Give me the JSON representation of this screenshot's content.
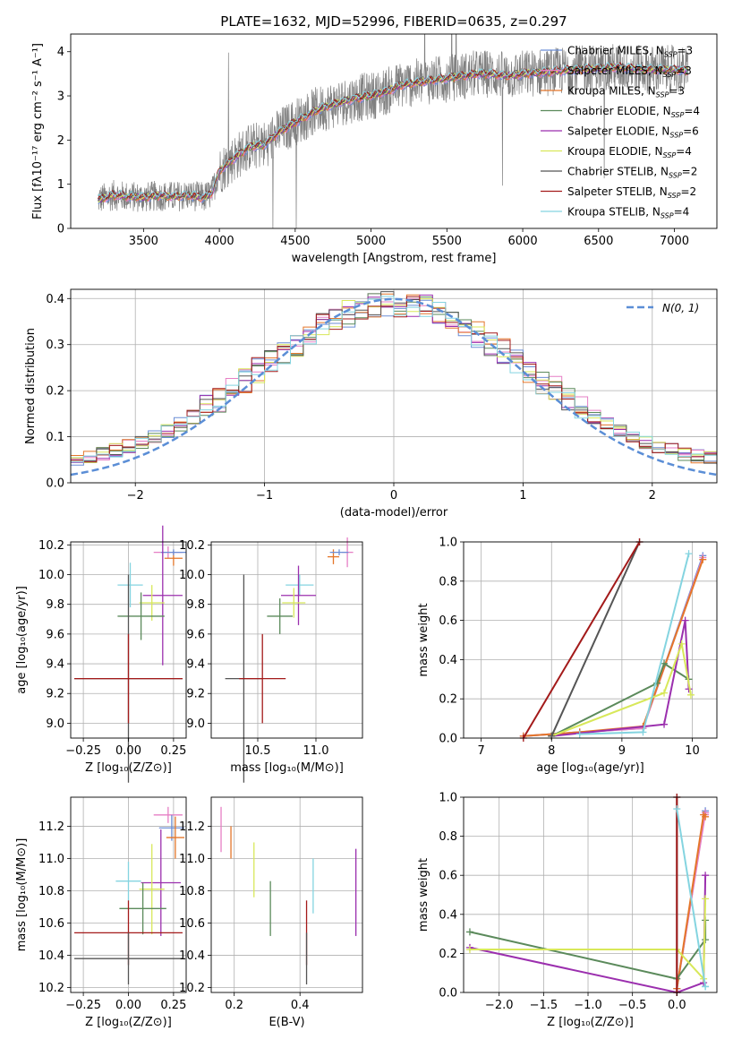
{
  "figure": {
    "title": "PLATE=1632, MJD=52996, FIBERID=0635, z=0.297"
  },
  "colors": {
    "Chabrier MILES": "#6b8ed6",
    "Salpeter MILES": "#e67fc5",
    "Kroupa MILES": "#e4762a",
    "Chabrier ELODIE": "#5b8a5b",
    "Salpeter ELODIE": "#9b2fae",
    "Kroupa ELODIE": "#d8e85a",
    "Chabrier STELIB": "#555555",
    "Salpeter STELIB": "#a31a1a",
    "Kroupa STELIB": "#84d4e0",
    "data": "#808080",
    "gaussian": "#5b8ed6"
  },
  "legend": {
    "spectrum": [
      {
        "label": "Chabrier MILES, N",
        "sub": "SSP",
        "tail": "=3",
        "key": "Chabrier MILES"
      },
      {
        "label": "Salpeter MILES, N",
        "sub": "SSP",
        "tail": "=3",
        "key": "Salpeter MILES"
      },
      {
        "label": "Kroupa MILES, N",
        "sub": "SSP",
        "tail": "=3",
        "key": "Kroupa MILES"
      },
      {
        "label": "Chabrier ELODIE, N",
        "sub": "SSP",
        "tail": "=4",
        "key": "Chabrier ELODIE"
      },
      {
        "label": "Salpeter ELODIE, N",
        "sub": "SSP",
        "tail": "=6",
        "key": "Salpeter ELODIE"
      },
      {
        "label": "Kroupa ELODIE, N",
        "sub": "SSP",
        "tail": "=4",
        "key": "Kroupa ELODIE"
      },
      {
        "label": "Chabrier STELIB, N",
        "sub": "SSP",
        "tail": "=2",
        "key": "Chabrier STELIB"
      },
      {
        "label": "Salpeter STELIB, N",
        "sub": "SSP",
        "tail": "=2",
        "key": "Salpeter STELIB"
      },
      {
        "label": "Kroupa STELIB, N",
        "sub": "SSP",
        "tail": "=4",
        "key": "Kroupa STELIB"
      }
    ],
    "residual": "N(0, 1)"
  },
  "chart_data": [
    {
      "id": "spectrum",
      "type": "line",
      "xlabel": "wavelength [Angstrom, rest frame]",
      "ylabel": "Flux [fλ10⁻¹⁷ erg cm⁻² s⁻¹ A⁻¹]",
      "xlim": [
        3020,
        7280
      ],
      "ylim": [
        0,
        4.4
      ],
      "xticks": [
        3500,
        4000,
        4500,
        5000,
        5500,
        6000,
        6500,
        7000
      ],
      "yticks": [
        0,
        1,
        2,
        3,
        4
      ],
      "model_continuum": {
        "x": [
          3200,
          3300,
          3400,
          3500,
          3600,
          3700,
          3800,
          3900,
          3950,
          4000,
          4100,
          4200,
          4300,
          4400,
          4500,
          4600,
          4700,
          4800,
          4900,
          5000,
          5100,
          5200,
          5300,
          5400,
          5500,
          5600,
          5700,
          5800,
          5900,
          6000,
          6200,
          6400,
          6600,
          6800,
          7000,
          7100
        ],
        "y": [
          0.65,
          0.75,
          0.72,
          0.7,
          0.74,
          0.72,
          0.75,
          0.7,
          0.8,
          1.3,
          1.6,
          1.85,
          1.9,
          2.2,
          2.4,
          2.6,
          2.75,
          2.85,
          2.95,
          3.0,
          3.1,
          3.25,
          3.3,
          3.35,
          3.4,
          3.45,
          3.5,
          3.5,
          3.45,
          3.5,
          3.55,
          3.6,
          3.65,
          3.6,
          3.6,
          3.55
        ]
      },
      "data_range": [
        3200,
        7090
      ]
    },
    {
      "id": "residuals",
      "type": "histogram",
      "xlabel": "(data-model)/error",
      "ylabel": "Normed distribution",
      "xlim": [
        -2.5,
        2.5
      ],
      "ylim": [
        0,
        0.42
      ],
      "xticks": [
        -2,
        -1,
        0,
        1,
        2
      ],
      "yticks": [
        0.0,
        0.1,
        0.2,
        0.3,
        0.4
      ],
      "bin_width": 0.1,
      "gaussian_sigma": 1
    },
    {
      "id": "age-Z",
      "type": "errorbar",
      "xlabel": "Z [log₁₀(Z/Z⊙)]",
      "ylabel": "age  [log₁₀(age/yr)]",
      "xlim": [
        -0.32,
        0.32
      ],
      "ylim": [
        8.9,
        10.22
      ],
      "xticks": [
        -0.25,
        0.0,
        0.25
      ],
      "yticks": [
        9.0,
        9.2,
        9.4,
        9.6,
        9.8,
        10.0,
        10.2
      ],
      "points": [
        {
          "key": "Salpeter MILES",
          "x": 0.22,
          "xerr": 0.08,
          "y": 10.15,
          "yerr": 0.04
        },
        {
          "key": "Kroupa MILES",
          "x": 0.25,
          "xerr": 0.05,
          "y": 10.11,
          "yerr": 0.05
        },
        {
          "key": "Chabrier MILES",
          "x": 0.25,
          "xerr": 0.07,
          "y": 10.15,
          "yerr": 0.02
        },
        {
          "key": "Kroupa STELIB",
          "x": 0.01,
          "xerr": 0.07,
          "y": 9.93,
          "yerr": 0.15
        },
        {
          "key": "Salpeter ELODIE",
          "x": 0.19,
          "xerr": 0.11,
          "y": 9.86,
          "yerr": 0.47
        },
        {
          "key": "Kroupa ELODIE",
          "x": 0.13,
          "xerr": 0.07,
          "y": 9.81,
          "yerr": 0.12
        },
        {
          "key": "Chabrier ELODIE",
          "x": 0.07,
          "xerr": 0.13,
          "y": 9.72,
          "yerr": 0.16
        },
        {
          "key": "Chabrier STELIB",
          "x": 0.0,
          "xerr": 0.3,
          "y": 9.3,
          "yerr": 0.7
        },
        {
          "key": "Salpeter STELIB",
          "x": 0.0,
          "xerr": 0.3,
          "y": 9.3,
          "yerr": 0.3
        }
      ]
    },
    {
      "id": "age-mass",
      "type": "errorbar",
      "xlabel": "mass [log₁₀(M/M⊙)]",
      "xlim": [
        10.1,
        11.4
      ],
      "ylim": [
        8.9,
        10.22
      ],
      "xticks": [
        10.5,
        11.0
      ],
      "yticks": [
        9.0,
        9.2,
        9.4,
        9.6,
        9.8,
        10.0,
        10.2
      ],
      "points": [
        {
          "key": "Salpeter MILES",
          "x": 11.27,
          "xerr": 0.05,
          "y": 10.15,
          "yerr": 0.1
        },
        {
          "key": "Kroupa MILES",
          "x": 11.15,
          "xerr": 0.05,
          "y": 10.12,
          "yerr": 0.05
        },
        {
          "key": "Chabrier MILES",
          "x": 11.2,
          "xerr": 0.08,
          "y": 10.15,
          "yerr": 0.02
        },
        {
          "key": "Kroupa STELIB",
          "x": 10.86,
          "xerr": 0.12,
          "y": 9.93,
          "yerr": 0.07
        },
        {
          "key": "Salpeter ELODIE",
          "x": 10.85,
          "xerr": 0.15,
          "y": 9.86,
          "yerr": 0.2
        },
        {
          "key": "Kroupa ELODIE",
          "x": 10.81,
          "xerr": 0.1,
          "y": 9.81,
          "yerr": 0.1
        },
        {
          "key": "Chabrier ELODIE",
          "x": 10.69,
          "xerr": 0.11,
          "y": 9.72,
          "yerr": 0.12
        },
        {
          "key": "Chabrier STELIB",
          "x": 10.38,
          "xerr": 0.16,
          "y": 9.3,
          "yerr": 0.7
        },
        {
          "key": "Salpeter STELIB",
          "x": 10.54,
          "xerr": 0.2,
          "y": 9.3,
          "yerr": 0.3
        }
      ]
    },
    {
      "id": "age-weight",
      "type": "line",
      "xlabel": "age  [log₁₀(age/yr)]",
      "ylabel": "mass weight",
      "xlim": [
        6.75,
        10.35
      ],
      "ylim": [
        0,
        1
      ],
      "xticks": [
        7,
        8,
        9,
        10
      ],
      "yticks": [
        0.0,
        0.2,
        0.4,
        0.6,
        0.8,
        1.0
      ],
      "series": [
        {
          "key": "Chabrier MILES",
          "x": [
            7.6,
            8.4,
            9.3,
            10.15
          ],
          "y": [
            0.01,
            0.03,
            0.05,
            0.93
          ]
        },
        {
          "key": "Salpeter MILES",
          "x": [
            7.6,
            8.4,
            9.3,
            10.15
          ],
          "y": [
            0.01,
            0.03,
            0.05,
            0.92
          ]
        },
        {
          "key": "Kroupa MILES",
          "x": [
            7.6,
            8.4,
            9.3,
            10.15
          ],
          "y": [
            0.01,
            0.03,
            0.06,
            0.91
          ]
        },
        {
          "key": "Chabrier ELODIE",
          "x": [
            8.0,
            9.5,
            9.6,
            9.95
          ],
          "y": [
            0.01,
            0.28,
            0.38,
            0.3
          ]
        },
        {
          "key": "Salpeter ELODIE",
          "x": [
            8.0,
            9.6,
            9.9,
            9.95
          ],
          "y": [
            0.01,
            0.07,
            0.6,
            0.25
          ]
        },
        {
          "key": "Kroupa ELODIE",
          "x": [
            8.0,
            9.6,
            9.85,
            9.98
          ],
          "y": [
            0.01,
            0.23,
            0.48,
            0.22
          ]
        },
        {
          "key": "Chabrier STELIB",
          "x": [
            8.0,
            9.25
          ],
          "y": [
            0.01,
            1.0
          ]
        },
        {
          "key": "Salpeter STELIB",
          "x": [
            7.6,
            9.25
          ],
          "y": [
            0.0,
            1.0
          ]
        },
        {
          "key": "Kroupa STELIB",
          "x": [
            8.4,
            9.3,
            9.95
          ],
          "y": [
            0.02,
            0.03,
            0.94
          ]
        }
      ]
    },
    {
      "id": "mass-Z",
      "type": "errorbar",
      "xlabel": "Z [log₁₀(Z/Z⊙)]",
      "ylabel": "mass [log₁₀(M/M⊙)]",
      "xlim": [
        -0.32,
        0.32
      ],
      "ylim": [
        10.17,
        11.38
      ],
      "xticks": [
        -0.25,
        0.0,
        0.25
      ],
      "yticks": [
        10.2,
        10.4,
        10.6,
        10.8,
        11.0,
        11.2
      ],
      "points": [
        {
          "key": "Salpeter MILES",
          "x": 0.22,
          "xerr": 0.08,
          "y": 11.27,
          "yerr": 0.05
        },
        {
          "key": "Chabrier MILES",
          "x": 0.24,
          "xerr": 0.07,
          "y": 11.19,
          "yerr": 0.08
        },
        {
          "key": "Kroupa MILES",
          "x": 0.26,
          "xerr": 0.05,
          "y": 11.13,
          "yerr": 0.13
        },
        {
          "key": "Kroupa STELIB",
          "x": 0.0,
          "xerr": 0.07,
          "y": 10.86,
          "yerr": 0.12
        },
        {
          "key": "Salpeter ELODIE",
          "x": 0.18,
          "xerr": 0.11,
          "y": 10.85,
          "yerr": 0.33
        },
        {
          "key": "Kroupa ELODIE",
          "x": 0.13,
          "xerr": 0.07,
          "y": 10.81,
          "yerr": 0.28
        },
        {
          "key": "Chabrier ELODIE",
          "x": 0.08,
          "xerr": 0.13,
          "y": 10.69,
          "yerr": 0.16
        },
        {
          "key": "Salpeter STELIB",
          "x": 0.0,
          "xerr": 0.3,
          "y": 10.54,
          "yerr": 0.2
        },
        {
          "key": "Chabrier STELIB",
          "x": 0.0,
          "xerr": 0.3,
          "y": 10.38,
          "yerr": 0.16
        }
      ]
    },
    {
      "id": "mass-EBV",
      "type": "errorbar",
      "xlabel": "E(B-V)",
      "xlim": [
        0.13,
        0.59
      ],
      "ylim": [
        10.17,
        11.38
      ],
      "xticks": [
        0.2,
        0.4
      ],
      "yticks": [
        10.2,
        10.4,
        10.6,
        10.8,
        11.0,
        11.2
      ],
      "points": [
        {
          "key": "Salpeter MILES",
          "x": 0.16,
          "xerr": 0,
          "y": 11.18,
          "yerr": 0.14
        },
        {
          "key": "Kroupa MILES",
          "x": 0.19,
          "xerr": 0,
          "y": 11.1,
          "yerr": 0.1
        },
        {
          "key": "Kroupa ELODIE",
          "x": 0.26,
          "xerr": 0,
          "y": 10.93,
          "yerr": 0.17
        },
        {
          "key": "Chabrier ELODIE",
          "x": 0.31,
          "xerr": 0,
          "y": 10.69,
          "yerr": 0.17
        },
        {
          "key": "Salpeter STELIB",
          "x": 0.42,
          "xerr": 0,
          "y": 10.54,
          "yerr": 0.2
        },
        {
          "key": "Chabrier STELIB",
          "x": 0.42,
          "xerr": 0,
          "y": 10.38,
          "yerr": 0.16
        },
        {
          "key": "Kroupa STELIB",
          "x": 0.44,
          "xerr": 0,
          "y": 10.83,
          "yerr": 0.17
        },
        {
          "key": "Salpeter ELODIE",
          "x": 0.57,
          "xerr": 0,
          "y": 10.79,
          "yerr": 0.27
        }
      ]
    },
    {
      "id": "Z-weight",
      "type": "line",
      "xlabel": "Z [log₁₀(Z/Z⊙)]",
      "ylabel": "mass weight",
      "xlim": [
        -2.4,
        0.45
      ],
      "ylim": [
        0,
        1
      ],
      "xticks": [
        -2.0,
        -1.5,
        -1.0,
        -0.5,
        0.0
      ],
      "yticks": [
        0.0,
        0.2,
        0.4,
        0.6,
        0.8,
        1.0
      ],
      "series": [
        {
          "key": "Chabrier MILES",
          "x": [
            0.0,
            0.32,
            0.32
          ],
          "y": [
            0.02,
            0.93,
            0.92
          ]
        },
        {
          "key": "Salpeter MILES",
          "x": [
            0.0,
            0.32,
            0.32
          ],
          "y": [
            0.02,
            0.92,
            0.91
          ]
        },
        {
          "key": "Kroupa MILES",
          "x": [
            0.0,
            0.3,
            0.32
          ],
          "y": [
            0.02,
            0.91,
            0.9
          ]
        },
        {
          "key": "Chabrier ELODIE",
          "x": [
            -2.33,
            0.0,
            0.32,
            0.32
          ],
          "y": [
            0.31,
            0.07,
            0.27,
            0.37
          ]
        },
        {
          "key": "Salpeter ELODIE",
          "x": [
            -2.33,
            0.0,
            0.3,
            0.32
          ],
          "y": [
            0.23,
            0.0,
            0.05,
            0.6
          ]
        },
        {
          "key": "Kroupa ELODIE",
          "x": [
            -2.33,
            0.0,
            0.3,
            0.32
          ],
          "y": [
            0.22,
            0.22,
            0.07,
            0.48
          ]
        },
        {
          "key": "Chabrier STELIB",
          "x": [
            0.0,
            0.0
          ],
          "y": [
            0.0,
            1.0
          ]
        },
        {
          "key": "Salpeter STELIB",
          "x": [
            0.0,
            0.0
          ],
          "y": [
            0.0,
            1.0
          ]
        },
        {
          "key": "Kroupa STELIB",
          "x": [
            0.0,
            0.32,
            0.32
          ],
          "y": [
            0.94,
            0.03,
            0.03
          ]
        }
      ]
    }
  ]
}
